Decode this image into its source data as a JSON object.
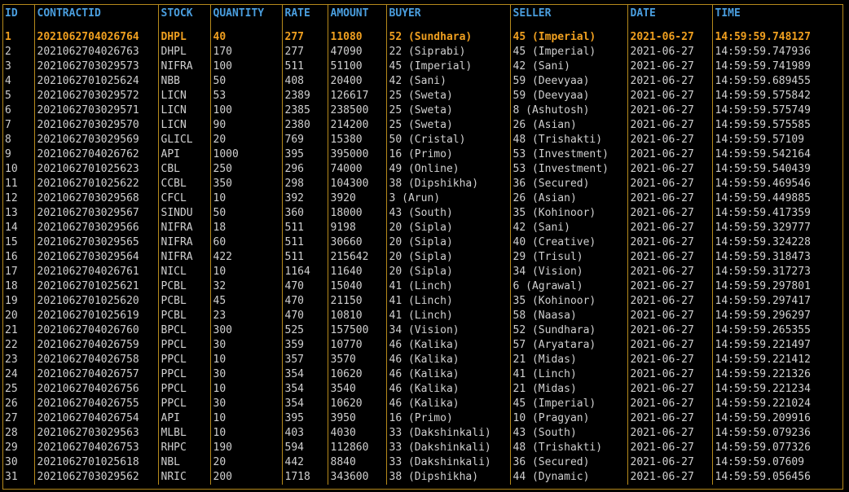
{
  "colors": {
    "border": "#b68a1c",
    "header": "#4a9ede",
    "selected": "#f0a020",
    "text": "#d0d0d0",
    "background": "#000000"
  },
  "headers": [
    "ID",
    "CONTRACTID",
    "STOCK",
    "QUANTITY",
    "RATE",
    "AMOUNT",
    "BUYER",
    "SELLER",
    "DATE",
    "TIME"
  ],
  "selected_row": 0,
  "rows": [
    [
      "1",
      "2021062704026764",
      "DHPL",
      "40",
      "277",
      "11080",
      "52 (Sundhara)",
      "45 (Imperial)",
      "2021-06-27",
      "14:59:59.748127"
    ],
    [
      "2",
      "2021062704026763",
      "DHPL",
      "170",
      "277",
      "47090",
      "22 (Siprabi)",
      "45 (Imperial)",
      "2021-06-27",
      "14:59:59.747936"
    ],
    [
      "3",
      "2021062703029573",
      "NIFRA",
      "100",
      "511",
      "51100",
      "45 (Imperial)",
      "42 (Sani)",
      "2021-06-27",
      "14:59:59.741989"
    ],
    [
      "4",
      "2021062701025624",
      "NBB",
      "50",
      "408",
      "20400",
      "42 (Sani)",
      "59 (Deevyaa)",
      "2021-06-27",
      "14:59:59.689455"
    ],
    [
      "5",
      "2021062703029572",
      "LICN",
      "53",
      "2389",
      "126617",
      "25 (Sweta)",
      "59 (Deevyaa)",
      "2021-06-27",
      "14:59:59.575842"
    ],
    [
      "6",
      "2021062703029571",
      "LICN",
      "100",
      "2385",
      "238500",
      "25 (Sweta)",
      "8 (Ashutosh)",
      "2021-06-27",
      "14:59:59.575749"
    ],
    [
      "7",
      "2021062703029570",
      "LICN",
      "90",
      "2380",
      "214200",
      "25 (Sweta)",
      "26 (Asian)",
      "2021-06-27",
      "14:59:59.575585"
    ],
    [
      "8",
      "2021062703029569",
      "GLICL",
      "20",
      "769",
      "15380",
      "50 (Cristal)",
      "48 (Trishakti)",
      "2021-06-27",
      "14:59:59.57109"
    ],
    [
      "9",
      "2021062704026762",
      "API",
      "1000",
      "395",
      "395000",
      "16 (Primo)",
      "53 (Investment)",
      "2021-06-27",
      "14:59:59.542164"
    ],
    [
      "10",
      "2021062701025623",
      "CBL",
      "250",
      "296",
      "74000",
      "49 (Online)",
      "53 (Investment)",
      "2021-06-27",
      "14:59:59.540439"
    ],
    [
      "11",
      "2021062701025622",
      "CCBL",
      "350",
      "298",
      "104300",
      "38 (Dipshikha)",
      "36 (Secured)",
      "2021-06-27",
      "14:59:59.469546"
    ],
    [
      "12",
      "2021062703029568",
      "CFCL",
      "10",
      "392",
      "3920",
      "3 (Arun)",
      "26 (Asian)",
      "2021-06-27",
      "14:59:59.449885"
    ],
    [
      "13",
      "2021062703029567",
      "SINDU",
      "50",
      "360",
      "18000",
      "43 (South)",
      "35 (Kohinoor)",
      "2021-06-27",
      "14:59:59.417359"
    ],
    [
      "14",
      "2021062703029566",
      "NIFRA",
      "18",
      "511",
      "9198",
      "20 (Sipla)",
      "42 (Sani)",
      "2021-06-27",
      "14:59:59.329777"
    ],
    [
      "15",
      "2021062703029565",
      "NIFRA",
      "60",
      "511",
      "30660",
      "20 (Sipla)",
      "40 (Creative)",
      "2021-06-27",
      "14:59:59.324228"
    ],
    [
      "16",
      "2021062703029564",
      "NIFRA",
      "422",
      "511",
      "215642",
      "20 (Sipla)",
      "29 (Trisul)",
      "2021-06-27",
      "14:59:59.318473"
    ],
    [
      "17",
      "2021062704026761",
      "NICL",
      "10",
      "1164",
      "11640",
      "20 (Sipla)",
      "34 (Vision)",
      "2021-06-27",
      "14:59:59.317273"
    ],
    [
      "18",
      "2021062701025621",
      "PCBL",
      "32",
      "470",
      "15040",
      "41 (Linch)",
      "6 (Agrawal)",
      "2021-06-27",
      "14:59:59.297801"
    ],
    [
      "19",
      "2021062701025620",
      "PCBL",
      "45",
      "470",
      "21150",
      "41 (Linch)",
      "35 (Kohinoor)",
      "2021-06-27",
      "14:59:59.297417"
    ],
    [
      "20",
      "2021062701025619",
      "PCBL",
      "23",
      "470",
      "10810",
      "41 (Linch)",
      "58 (Naasa)",
      "2021-06-27",
      "14:59:59.296297"
    ],
    [
      "21",
      "2021062704026760",
      "BPCL",
      "300",
      "525",
      "157500",
      "34 (Vision)",
      "52 (Sundhara)",
      "2021-06-27",
      "14:59:59.265355"
    ],
    [
      "22",
      "2021062704026759",
      "PPCL",
      "30",
      "359",
      "10770",
      "46 (Kalika)",
      "57 (Aryatara)",
      "2021-06-27",
      "14:59:59.221497"
    ],
    [
      "23",
      "2021062704026758",
      "PPCL",
      "10",
      "357",
      "3570",
      "46 (Kalika)",
      "21 (Midas)",
      "2021-06-27",
      "14:59:59.221412"
    ],
    [
      "24",
      "2021062704026757",
      "PPCL",
      "30",
      "354",
      "10620",
      "46 (Kalika)",
      "41 (Linch)",
      "2021-06-27",
      "14:59:59.221326"
    ],
    [
      "25",
      "2021062704026756",
      "PPCL",
      "10",
      "354",
      "3540",
      "46 (Kalika)",
      "21 (Midas)",
      "2021-06-27",
      "14:59:59.221234"
    ],
    [
      "26",
      "2021062704026755",
      "PPCL",
      "30",
      "354",
      "10620",
      "46 (Kalika)",
      "45 (Imperial)",
      "2021-06-27",
      "14:59:59.221024"
    ],
    [
      "27",
      "2021062704026754",
      "API",
      "10",
      "395",
      "3950",
      "16 (Primo)",
      "10 (Pragyan)",
      "2021-06-27",
      "14:59:59.209916"
    ],
    [
      "28",
      "2021062703029563",
      "MLBL",
      "10",
      "403",
      "4030",
      "33 (Dakshinkali)",
      "43 (South)",
      "2021-06-27",
      "14:59:59.079236"
    ],
    [
      "29",
      "2021062704026753",
      "RHPC",
      "190",
      "594",
      "112860",
      "33 (Dakshinkali)",
      "48 (Trishakti)",
      "2021-06-27",
      "14:59:59.077326"
    ],
    [
      "30",
      "2021062701025618",
      "NBL",
      "20",
      "442",
      "8840",
      "33 (Dakshinkali)",
      "36 (Secured)",
      "2021-06-27",
      "14:59:59.07609"
    ],
    [
      "31",
      "2021062703029562",
      "NRIC",
      "200",
      "1718",
      "343600",
      "38 (Dipshikha)",
      "44 (Dynamic)",
      "2021-06-27",
      "14:59:59.056456"
    ]
  ]
}
